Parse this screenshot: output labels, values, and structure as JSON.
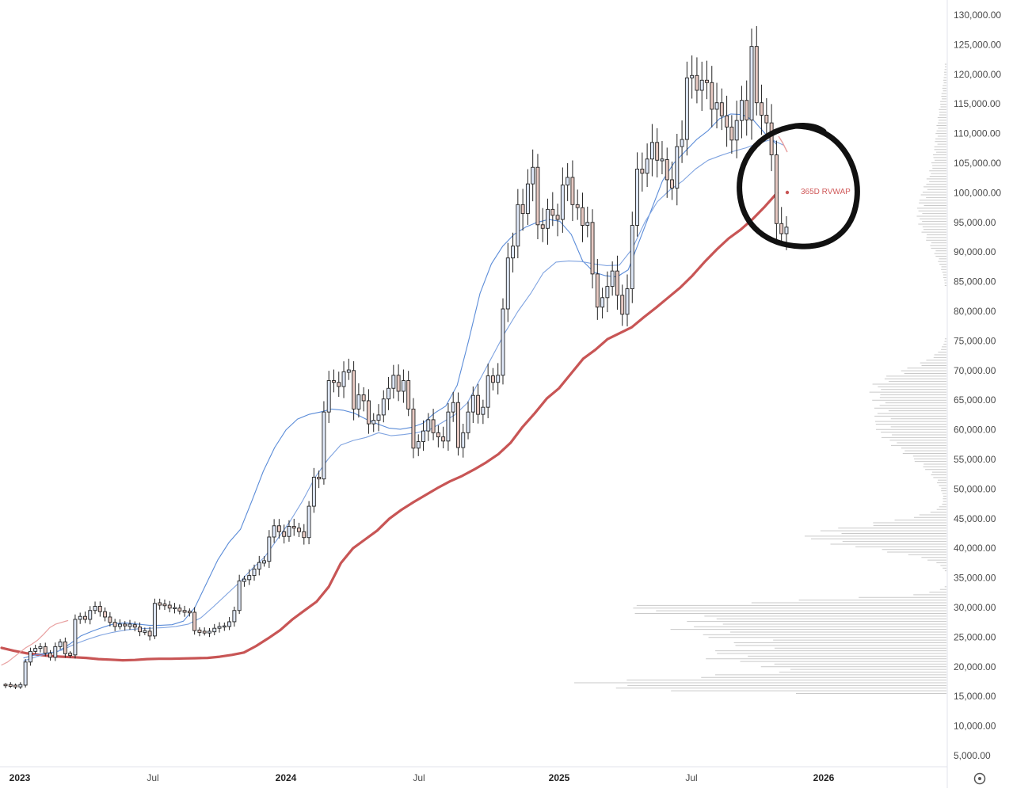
{
  "chart_data": {
    "type": "candlestick",
    "title": "",
    "x_axis": {
      "tick_labels": [
        "2023",
        "Jul",
        "2024",
        "Jul",
        "2025",
        "Jul",
        "2026"
      ],
      "bold_ticks": [
        "2023",
        "2024",
        "2025",
        "2026"
      ]
    },
    "y_axis": {
      "min": 5000,
      "max": 130000,
      "tick_values": [
        5000,
        10000,
        15000,
        20000,
        25000,
        30000,
        35000,
        40000,
        45000,
        50000,
        55000,
        60000,
        65000,
        70000,
        75000,
        80000,
        85000,
        90000,
        95000,
        100000,
        105000,
        110000,
        115000,
        120000,
        125000,
        130000
      ],
      "tick_labels": [
        "5,000.00",
        "10,000.00",
        "15,000.00",
        "20,000.00",
        "25,000.00",
        "30,000.00",
        "35,000.00",
        "40,000.00",
        "45,000.00",
        "50,000.00",
        "55,000.00",
        "60,000.00",
        "65,000.00",
        "70,000.00",
        "75,000.00",
        "80,000.00",
        "85,000.00",
        "90,000.00",
        "95,000.00",
        "100,000.00",
        "105,000.00",
        "110,000.00",
        "115,000.00",
        "120,000.00",
        "125,000.00",
        "130,000.00"
      ]
    },
    "grid": false,
    "candles_weekly_close": [
      16900,
      16800,
      16700,
      16900,
      20800,
      22600,
      23100,
      23400,
      22300,
      21600,
      23400,
      24200,
      22200,
      22000,
      28000,
      28500,
      28000,
      29500,
      30200,
      29300,
      28400,
      27500,
      26800,
      27200,
      26900,
      27100,
      26700,
      25900,
      26000,
      25200,
      30700,
      30500,
      30400,
      29900,
      29900,
      29400,
      29300,
      29200,
      26100,
      25900,
      25800,
      25900,
      26500,
      26800,
      26800,
      27600,
      29500,
      34500,
      34700,
      35400,
      36500,
      37600,
      37800,
      41900,
      43800,
      42800,
      42000,
      43700,
      43400,
      42800,
      41800,
      47100,
      52000,
      51700,
      63000,
      68300,
      68000,
      67300,
      69800,
      70000,
      63500,
      65900,
      64900,
      61000,
      61600,
      62500,
      65200,
      67000,
      69200,
      66500,
      68300,
      63500,
      56900,
      58000,
      59800,
      61700,
      59500,
      58800,
      58100,
      63000,
      64600,
      57000,
      59500,
      63000,
      65800,
      62600,
      63800,
      69100,
      68000,
      69200,
      80400,
      89000,
      91000,
      98000,
      96500,
      101500,
      104300,
      94600,
      94000,
      97200,
      96200,
      95500,
      101300,
      102600,
      98000,
      97500,
      94500,
      95000,
      86300,
      80700,
      82300,
      84200,
      86800,
      82700,
      79500,
      83800,
      94500,
      104000,
      103300,
      105700,
      108500,
      105500,
      105600,
      102200,
      100800,
      107800,
      109000,
      119400,
      119800,
      117300,
      119000,
      118600,
      114100,
      115200,
      113000,
      111100,
      108900,
      112200,
      115600,
      112300,
      124700,
      115200,
      113100,
      111800,
      106400,
      94800,
      93100,
      94200
    ],
    "series": [
      {
        "name": "",
        "color": "#c85555",
        "role": "thick",
        "values": [
          23200,
          22700,
          22300,
          22050,
          21800,
          21700,
          21600,
          21500,
          21300,
          21200,
          21100,
          21150,
          21300,
          21350,
          21350,
          21400,
          21450,
          21500,
          21700,
          22000,
          22400,
          23500,
          24800,
          26200,
          28000,
          29500,
          31000,
          33500,
          37500,
          40000,
          41500,
          43000,
          45000,
          46500,
          47800,
          49000,
          50200,
          51300,
          52200,
          53300,
          54500,
          55900,
          57800,
          60500,
          62800,
          65300,
          67000,
          69500,
          72000,
          73500,
          75300,
          76300,
          77300,
          79000,
          80600,
          82300,
          84000,
          86000,
          88300,
          90400,
          92300,
          93800,
          95600,
          97700,
          100000
        ]
      },
      {
        "name": "",
        "color": "#e8a0a0",
        "role": "thin",
        "values": [
          20300,
          20800,
          21600,
          22400,
          23200,
          23800,
          24500,
          25500,
          26600,
          27200,
          27500,
          27800
        ]
      },
      {
        "name": "",
        "color": "#5b8cd8",
        "role": "thin",
        "values": [
          21500,
          22000,
          22300,
          22600,
          23800,
          25200,
          26000,
          26700,
          27300,
          27400,
          27200,
          27000,
          27000,
          27100,
          27700,
          30000,
          34000,
          38000,
          41000,
          43200,
          48000,
          53000,
          57000,
          60000,
          61800,
          62600,
          63000,
          63500,
          63300,
          62800,
          61800,
          61000,
          60300,
          60100,
          60400,
          61100,
          62800,
          64000,
          67500,
          75000,
          83000,
          88000,
          91000,
          93000,
          94200,
          95000,
          95500,
          95200,
          93000,
          88500,
          86600,
          86000,
          85800,
          87000,
          92000,
          97000,
          102000,
          105000,
          107000,
          109000,
          110500,
          112500,
          113300,
          113200,
          112200,
          110000,
          108200
        ]
      },
      {
        "name": "",
        "color": "#7fa3e0",
        "role": "thin",
        "values": [
          21000,
          21700,
          22300,
          22800,
          23800,
          24600,
          25300,
          25800,
          26200,
          26400,
          26500,
          26600,
          26800,
          27200,
          28300,
          30200,
          32200,
          34200,
          36500,
          38500,
          41500,
          44500,
          48000,
          52000,
          55000,
          57400,
          58200,
          58700,
          59500,
          59000,
          59200,
          59500,
          60000,
          61200,
          62500,
          64500,
          68500,
          72500,
          76500,
          80000,
          83000,
          86500,
          88300,
          88500,
          88400,
          88000,
          87700,
          87800,
          90500,
          95000,
          98500,
          100500,
          102000,
          104000,
          105500,
          106300,
          107000,
          107600,
          108400,
          109000,
          108000
        ]
      }
    ],
    "annotations": [
      {
        "text": "365D RVWAP",
        "color": "#d05a5a"
      }
    ],
    "highlight": "hand-drawn black circle around the latest candles",
    "volume_profile": "right-side horizontal volume-by-price histogram (gray)",
    "legend": "none"
  }
}
